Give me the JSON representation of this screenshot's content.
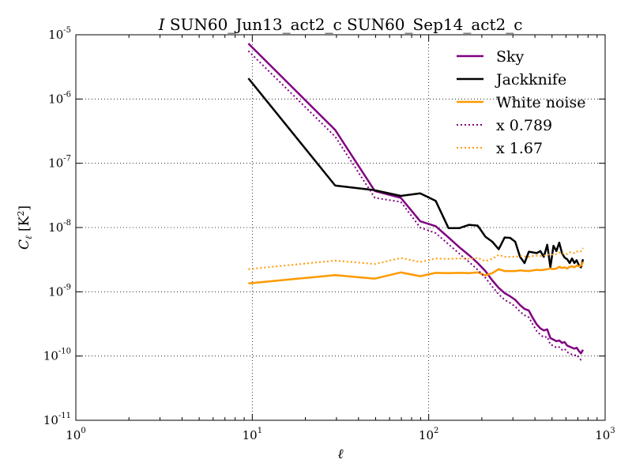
{
  "chart_data": {
    "type": "line",
    "title_italic": "I",
    "title": "SUN60_Jun13_act2_c SUN60_Sep14_act2_c",
    "xlabel": "ℓ",
    "ylabel_main": "C",
    "ylabel_sub": "ℓ",
    "ylabel_unit": "[K",
    "ylabel_unit_sup": "2",
    "ylabel_unit_close": "]",
    "xscale": "log",
    "yscale": "log",
    "xlim": [
      1,
      1000
    ],
    "ylim": [
      1e-11,
      1e-05
    ],
    "grid": true,
    "legend_position": "top-right",
    "x_ticks": [
      {
        "value": 1,
        "base": "10",
        "exp": "0"
      },
      {
        "value": 10,
        "base": "10",
        "exp": "1"
      },
      {
        "value": 100,
        "base": "10",
        "exp": "2"
      },
      {
        "value": 1000,
        "base": "10",
        "exp": "3"
      }
    ],
    "y_ticks": [
      {
        "value": 1e-11,
        "base": "10",
        "exp": "-11"
      },
      {
        "value": 1e-10,
        "base": "10",
        "exp": "-10"
      },
      {
        "value": 1e-09,
        "base": "10",
        "exp": "-9"
      },
      {
        "value": 1e-08,
        "base": "10",
        "exp": "-8"
      },
      {
        "value": 1e-07,
        "base": "10",
        "exp": "-7"
      },
      {
        "value": 1e-06,
        "base": "10",
        "exp": "-6"
      },
      {
        "value": 1e-05,
        "base": "10",
        "exp": "-5"
      }
    ],
    "series": [
      {
        "name": "Sky",
        "color": "#800080",
        "style": "solid",
        "width": 2.5,
        "x": [
          9.5,
          29.5,
          49.5,
          69.5,
          89.5,
          109.5,
          129.5,
          149.5,
          169.5,
          189.5,
          209.5,
          229.5,
          249.5,
          269.5,
          289.5,
          309.5,
          329.5,
          349.5,
          369.5,
          389.5,
          409.5,
          429.5,
          449.5,
          469.5,
          489.5,
          509.5,
          529.5,
          549.5,
          569.5,
          589.5,
          609.5,
          629.5,
          649.5,
          669.5,
          689.5,
          709.5,
          729.5,
          749.5
        ],
        "y": [
          7.3e-06,
          3.3e-07,
          3.7e-08,
          2.9e-08,
          1.25e-08,
          1.05e-08,
          7e-09,
          4.9e-09,
          3.7e-09,
          2.8e-09,
          2.1e-09,
          1.5e-09,
          1.15e-09,
          9.5e-10,
          8.5e-10,
          7.5e-10,
          6.2e-10,
          5.4e-10,
          5.1e-10,
          3.9e-10,
          3.1e-10,
          2.7e-10,
          2.5e-10,
          2.6e-10,
          1.9e-10,
          1.8e-10,
          1.7e-10,
          1.75e-10,
          1.6e-10,
          1.65e-10,
          1.45e-10,
          1.4e-10,
          1.35e-10,
          1.3e-10,
          1.35e-10,
          1.2e-10,
          1.1e-10,
          1.25e-10
        ]
      },
      {
        "name": "Jackknife",
        "color": "#000000",
        "style": "solid",
        "width": 2.5,
        "x": [
          9.5,
          29.5,
          49.5,
          69.5,
          89.5,
          109.5,
          129.5,
          149.5,
          169.5,
          189.5,
          209.5,
          229.5,
          249.5,
          269.5,
          289.5,
          309.5,
          329.5,
          349.5,
          369.5,
          389.5,
          409.5,
          429.5,
          449.5,
          469.5,
          489.5,
          509.5,
          529.5,
          549.5,
          569.5,
          589.5,
          609.5,
          629.5,
          649.5,
          669.5,
          689.5,
          709.5,
          729.5,
          749.5
        ],
        "y": [
          2.1e-06,
          4.5e-08,
          3.8e-08,
          3.1e-08,
          3.4e-08,
          2.6e-08,
          9.8e-09,
          9.8e-09,
          1.1e-08,
          1.07e-08,
          7.2e-09,
          6e-09,
          4.6e-09,
          7e-09,
          6.9e-09,
          6e-09,
          3.5e-09,
          2.8e-09,
          4.2e-09,
          4.1e-09,
          4e-09,
          4.3e-09,
          3.5e-09,
          5.4e-09,
          2.4e-09,
          5.2e-09,
          4.3e-09,
          5.8e-09,
          4e-09,
          3.4e-09,
          3.2e-09,
          2.8e-09,
          3.3e-09,
          2.8e-09,
          3.1e-09,
          2.6e-09,
          2.4e-09,
          3.2e-09
        ]
      },
      {
        "name": "White noise",
        "color": "#ff9900",
        "style": "solid",
        "width": 2.5,
        "x": [
          9.5,
          29.5,
          49.5,
          69.5,
          89.5,
          109.5,
          129.5,
          149.5,
          169.5,
          189.5,
          209.5,
          229.5,
          249.5,
          269.5,
          289.5,
          309.5,
          329.5,
          349.5,
          369.5,
          389.5,
          409.5,
          429.5,
          449.5,
          469.5,
          489.5,
          509.5,
          529.5,
          549.5,
          569.5,
          589.5,
          609.5,
          629.5,
          649.5,
          669.5,
          689.5,
          709.5,
          729.5,
          749.5
        ],
        "y": [
          1.35e-09,
          1.82e-09,
          1.6e-09,
          2e-09,
          1.75e-09,
          1.97e-09,
          1.95e-09,
          1.97e-09,
          1.95e-09,
          2e-09,
          1.8e-09,
          1.95e-09,
          2.25e-09,
          2.1e-09,
          2.1e-09,
          2.1e-09,
          2.15e-09,
          2.12e-09,
          2.1e-09,
          2.15e-09,
          2.2e-09,
          2.17e-09,
          2.2e-09,
          2.25e-09,
          2.3e-09,
          2.25e-09,
          2.3e-09,
          2.45e-09,
          2.35e-09,
          2.4e-09,
          2.3e-09,
          2.45e-09,
          2.5e-09,
          2.4e-09,
          2.55e-09,
          2.5e-09,
          2.55e-09,
          2.9e-09
        ]
      },
      {
        "name": "x 0.789",
        "color": "#800080",
        "style": "dotted",
        "width": 2,
        "x": [
          9.5,
          29.5,
          49.5,
          69.5,
          89.5,
          109.5,
          129.5,
          149.5,
          169.5,
          189.5,
          209.5,
          229.5,
          249.5,
          269.5,
          289.5,
          309.5,
          329.5,
          349.5,
          369.5,
          389.5,
          409.5,
          429.5,
          449.5,
          469.5,
          489.5,
          509.5,
          529.5,
          549.5,
          569.5,
          589.5,
          609.5,
          629.5,
          649.5,
          669.5,
          689.5,
          709.5,
          729.5,
          749.5
        ],
        "y": [
          5.6e-06,
          2.6e-07,
          2.9e-08,
          2.5e-08,
          1e-08,
          8.2e-09,
          5.5e-09,
          3.9e-09,
          2.9e-09,
          2.2e-09,
          1.65e-09,
          1.2e-09,
          9.1e-10,
          7.5e-10,
          6.7e-10,
          5.9e-10,
          4.9e-10,
          4.3e-10,
          4e-10,
          3.1e-10,
          2.45e-10,
          2.15e-10,
          1.95e-10,
          2e-10,
          1.5e-10,
          1.45e-10,
          1.35e-10,
          1.38e-10,
          1.25e-10,
          1.3e-10,
          1.15e-10,
          1.1e-10,
          1.05e-10,
          1.02e-10,
          1.05e-10,
          9.5e-11,
          8.7e-11,
          8.7e-11
        ]
      },
      {
        "name": "x 1.67",
        "color": "#ff9900",
        "style": "dotted",
        "width": 2,
        "x": [
          9.5,
          29.5,
          49.5,
          69.5,
          89.5,
          109.5,
          129.5,
          149.5,
          169.5,
          189.5,
          209.5,
          229.5,
          249.5,
          269.5,
          289.5,
          309.5,
          329.5,
          349.5,
          369.5,
          389.5,
          409.5,
          429.5,
          449.5,
          469.5,
          489.5,
          509.5,
          529.5,
          549.5,
          569.5,
          589.5,
          609.5,
          629.5,
          649.5,
          669.5,
          689.5,
          709.5,
          729.5,
          749.5
        ],
        "y": [
          2.25e-09,
          3.05e-09,
          2.7e-09,
          3.35e-09,
          2.9e-09,
          3.3e-09,
          3.25e-09,
          3.3e-09,
          3.25e-09,
          3.35e-09,
          3e-09,
          3.25e-09,
          3.75e-09,
          3.5e-09,
          3.5e-09,
          3.5e-09,
          3.6e-09,
          3.55e-09,
          3.5e-09,
          3.6e-09,
          3.65e-09,
          3.6e-09,
          3.65e-09,
          3.75e-09,
          3.85e-09,
          3.75e-09,
          3.85e-09,
          4.1e-09,
          3.9e-09,
          4e-09,
          3.85e-09,
          4.1e-09,
          4.15e-09,
          4e-09,
          4.25e-09,
          4.15e-09,
          4.25e-09,
          4.8e-09
        ]
      }
    ]
  }
}
